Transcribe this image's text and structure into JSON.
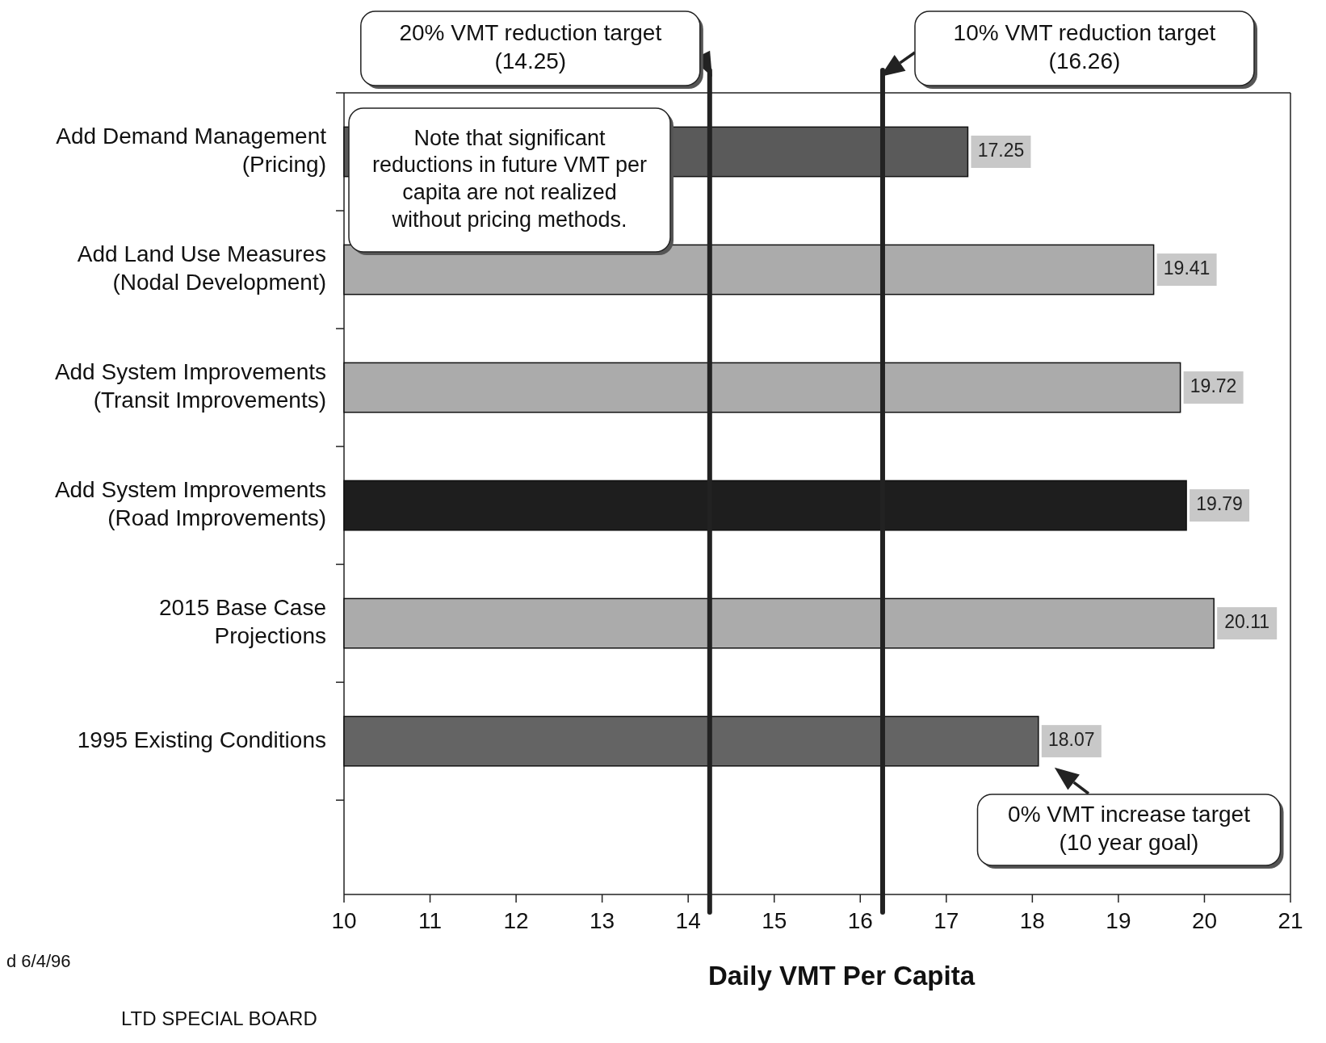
{
  "chart_data": {
    "type": "bar",
    "orientation": "horizontal",
    "xlabel": "Daily VMT Per Capita",
    "categories": [
      "Add Demand Management\n(Pricing)",
      "Add Land Use Measures\n(Nodal Development)",
      "Add System Improvements\n(Transit Improvements)",
      "Add System Improvements\n(Road Improvements)",
      "2015 Base Case\nProjections",
      "1995 Existing Conditions"
    ],
    "values": [
      17.25,
      19.41,
      19.72,
      19.79,
      20.11,
      18.07
    ],
    "colors": [
      "#5a5a5a",
      "#ababab",
      "#ababab",
      "#1e1e1e",
      "#ababab",
      "#646464"
    ],
    "xlim": [
      10,
      21
    ],
    "xticks": [
      10,
      11,
      12,
      13,
      14,
      15,
      16,
      17,
      18,
      19,
      20,
      21
    ],
    "data_labels": true,
    "grid": false,
    "ref_lines": [
      {
        "axis": "x",
        "value": 14.25,
        "label": "20% VMT reduction target\n(14.25)",
        "color": "#222222"
      },
      {
        "axis": "x",
        "value": 16.26,
        "label": "10% VMT reduction target\n(16.26)",
        "color": "#222222"
      }
    ],
    "annotations": [
      {
        "text": "0% VMT increase target\n(10 year goal)",
        "x": 18.07,
        "y": "1995 Existing Conditions"
      },
      "Note that significant\nreductions in future VMT per\ncapita are not realized\nwithout pricing methods.",
      "d 6/4/96",
      "LTD SPECIAL BOARD"
    ]
  }
}
